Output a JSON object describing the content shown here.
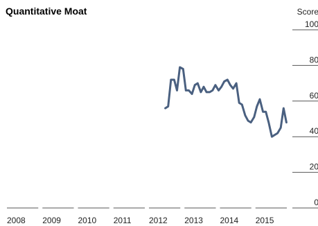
{
  "chart_data": {
    "type": "line",
    "title": "Quantitative Moat",
    "y_axis_title": "Score",
    "ylim": [
      0,
      100
    ],
    "y_ticks": [
      "0",
      "20",
      "40",
      "60",
      "80",
      "100"
    ],
    "x_tick_labels": [
      "2008",
      "2009",
      "2010",
      "2011",
      "2012",
      "2013",
      "2014",
      "2015"
    ],
    "x_range": [
      2008,
      2016
    ],
    "line_color": "#4a6080",
    "series": [
      {
        "x": [
          2012.5,
          2012.58,
          2012.66,
          2012.75,
          2012.83,
          2012.91,
          2013.0,
          2013.08,
          2013.16,
          2013.25,
          2013.33,
          2013.41,
          2013.5,
          2013.58,
          2013.66,
          2013.75,
          2013.83,
          2013.91,
          2014.0,
          2014.08,
          2014.16,
          2014.25,
          2014.33,
          2014.41,
          2014.5,
          2014.58,
          2014.66,
          2014.75,
          2014.83,
          2014.91,
          2015.0,
          2015.08,
          2015.16,
          2015.25,
          2015.33,
          2015.41,
          2015.5,
          2015.58,
          2015.66,
          2015.75,
          2015.83,
          2015.91
        ],
        "values": [
          56,
          57,
          72,
          72,
          66,
          79,
          78,
          66,
          66,
          64,
          69,
          70,
          65,
          68,
          65,
          65,
          66,
          69,
          66,
          68,
          71,
          72,
          69,
          67,
          70,
          59,
          58,
          52,
          49,
          48,
          51,
          57,
          61,
          54,
          54,
          48,
          40,
          41,
          42,
          45,
          56,
          48
        ]
      }
    ]
  }
}
